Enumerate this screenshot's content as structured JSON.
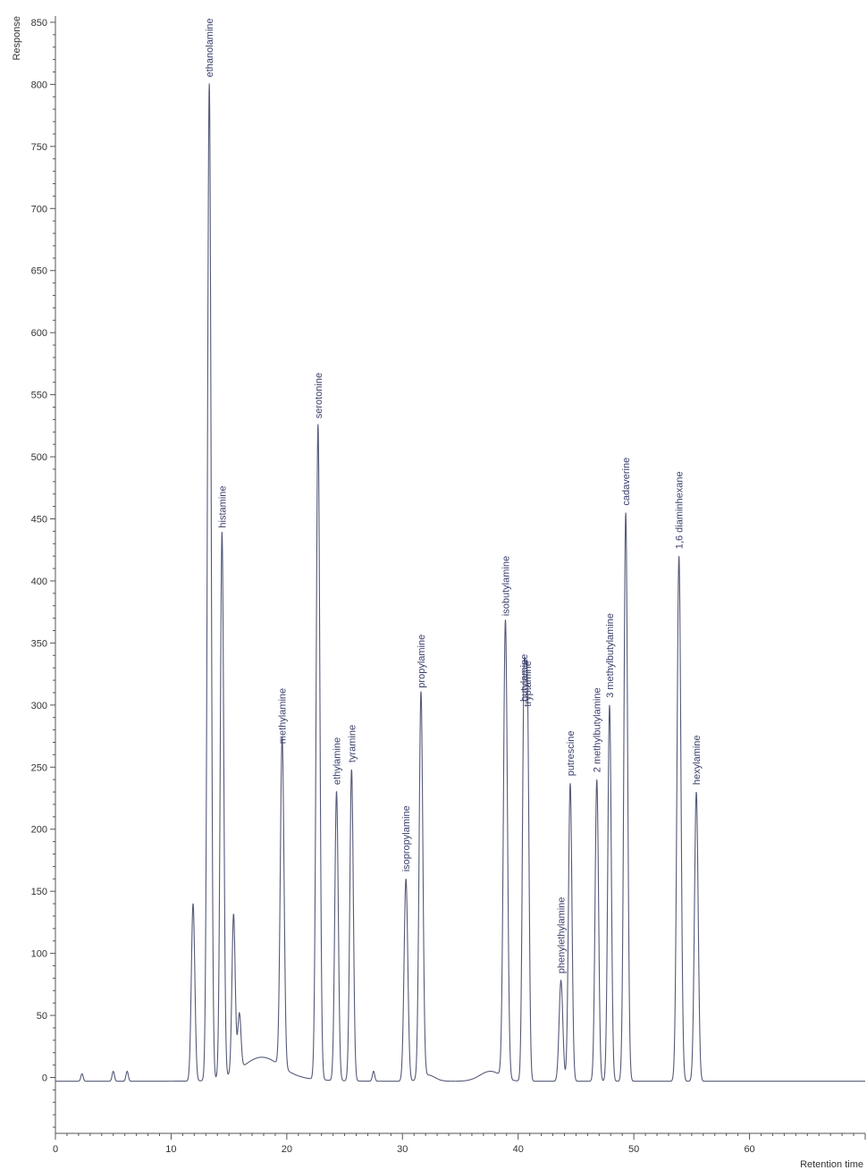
{
  "chart_data": {
    "type": "line",
    "xlabel": "Retention time",
    "ylabel": "Response",
    "xlim": [
      0,
      70
    ],
    "ylim": [
      -45,
      855
    ],
    "x_ticks": [
      0,
      10,
      20,
      30,
      40,
      50,
      60
    ],
    "y_ticks": [
      0,
      50,
      100,
      150,
      200,
      250,
      300,
      350,
      400,
      450,
      500,
      550,
      600,
      650,
      700,
      750,
      800,
      850
    ],
    "grid": false,
    "trace_color": "#555a78",
    "baseline_level": -3,
    "peaks": [
      {
        "label": "",
        "rt": 2.3,
        "height": 3,
        "width": 0.1
      },
      {
        "label": "",
        "rt": 5.0,
        "height": 5,
        "width": 0.1
      },
      {
        "label": "",
        "rt": 6.2,
        "height": 5,
        "width": 0.1
      },
      {
        "label": "",
        "rt": 11.9,
        "height": 140,
        "width": 0.15
      },
      {
        "label": "ethanolamine",
        "rt": 13.3,
        "height": 800,
        "width": 0.16
      },
      {
        "label": "histamine",
        "rt": 14.4,
        "height": 437,
        "width": 0.15
      },
      {
        "label": "",
        "rt": 15.4,
        "height": 125,
        "width": 0.14
      },
      {
        "label": "",
        "rt": 15.9,
        "height": 42,
        "width": 0.14
      },
      {
        "label": "methylamine",
        "rt": 19.6,
        "height": 263,
        "width": 0.16
      },
      {
        "label": "serotonine",
        "rt": 22.7,
        "height": 525,
        "width": 0.16
      },
      {
        "label": "ethylamine",
        "rt": 24.3,
        "height": 230,
        "width": 0.15
      },
      {
        "label": "tyramine",
        "rt": 25.6,
        "height": 248,
        "width": 0.15
      },
      {
        "label": "",
        "rt": 27.5,
        "height": 5,
        "width": 0.1
      },
      {
        "label": "isopropylamine",
        "rt": 30.3,
        "height": 160,
        "width": 0.16
      },
      {
        "label": "propylamine",
        "rt": 31.6,
        "height": 308,
        "width": 0.16
      },
      {
        "label": "isobutylamine",
        "rt": 38.9,
        "height": 366,
        "width": 0.17
      },
      {
        "label": "butylamine",
        "rt": 40.5,
        "height": 297,
        "width": 0.14
      },
      {
        "label": "tryptamine",
        "rt": 40.8,
        "height": 293,
        "width": 0.14
      },
      {
        "label": "phenylethylamine",
        "rt": 43.7,
        "height": 78,
        "width": 0.16
      },
      {
        "label": "putrescine",
        "rt": 44.5,
        "height": 237,
        "width": 0.15
      },
      {
        "label": "2 methylbutylamine",
        "rt": 46.8,
        "height": 240,
        "width": 0.15
      },
      {
        "label": "3 methylbutylamine",
        "rt": 47.9,
        "height": 300,
        "width": 0.15
      },
      {
        "label": "cadaverine",
        "rt": 49.3,
        "height": 455,
        "width": 0.16
      },
      {
        "label": "1,6 diaminhexane",
        "rt": 53.9,
        "height": 420,
        "width": 0.17
      },
      {
        "label": "hexylamine",
        "rt": 55.4,
        "height": 230,
        "width": 0.16
      }
    ],
    "humps": [
      {
        "rt": 17.8,
        "height": 17,
        "width": 1.6
      },
      {
        "rt": 37.6,
        "height": 8,
        "width": 0.9
      },
      {
        "rt": 32.2,
        "height": 5,
        "width": 0.6
      }
    ]
  }
}
